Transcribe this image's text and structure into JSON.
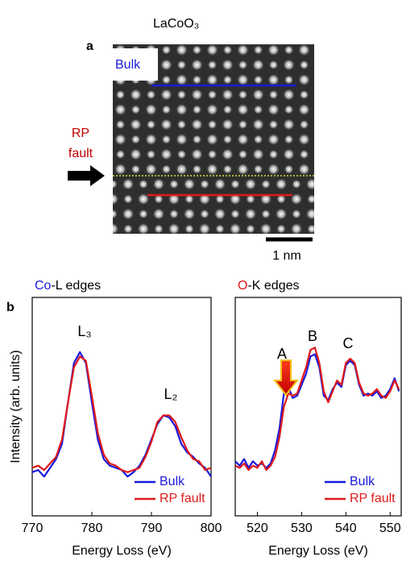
{
  "panel_a": {
    "label": "a",
    "title": "LaCoO₃",
    "bulk_label": "Bulk",
    "fault_label": [
      "RP",
      "fault"
    ],
    "scale_bar": "1 nm"
  },
  "panel_b": {
    "label": "b"
  },
  "chart_data": [
    {
      "type": "line",
      "title": [
        "Co",
        "-L edges"
      ],
      "title_color": "#1a1adc",
      "xlabel": "Energy Loss (eV)",
      "ylabel": "Intensity (arb. units)",
      "xlim": [
        770,
        800
      ],
      "xticks": [
        770,
        780,
        790,
        800
      ],
      "ylim": [
        0,
        1
      ],
      "legend": "lower right",
      "annotations": [
        "L₃",
        "L₂"
      ],
      "x": [
        770,
        771,
        772,
        773,
        774,
        775,
        776,
        777,
        778,
        779,
        780,
        781,
        782,
        783,
        784,
        785,
        786,
        787,
        788,
        789,
        790,
        791,
        792,
        793,
        794,
        795,
        796,
        797,
        798,
        799,
        800
      ],
      "series": [
        {
          "name": "Bulk",
          "color": "#1a1adc",
          "values": [
            0.2,
            0.21,
            0.18,
            0.22,
            0.26,
            0.33,
            0.52,
            0.7,
            0.75,
            0.7,
            0.52,
            0.35,
            0.26,
            0.23,
            0.22,
            0.21,
            0.18,
            0.2,
            0.23,
            0.28,
            0.35,
            0.42,
            0.46,
            0.45,
            0.41,
            0.33,
            0.29,
            0.27,
            0.24,
            0.22,
            0.18
          ]
        },
        {
          "name": "RP fault",
          "color": "#e01a1a",
          "values": [
            0.22,
            0.23,
            0.21,
            0.24,
            0.27,
            0.35,
            0.52,
            0.68,
            0.73,
            0.71,
            0.55,
            0.38,
            0.28,
            0.24,
            0.23,
            0.21,
            0.2,
            0.21,
            0.22,
            0.27,
            0.34,
            0.43,
            0.46,
            0.46,
            0.43,
            0.36,
            0.3,
            0.26,
            0.25,
            0.21,
            0.22
          ]
        }
      ]
    },
    {
      "type": "line",
      "title": [
        "O",
        "-K edges"
      ],
      "title_color": "#e01a1a",
      "xlabel": "Energy Loss (eV)",
      "xlim": [
        515,
        552.5
      ],
      "xticks": [
        520,
        530,
        540,
        550
      ],
      "ylim": [
        0,
        1
      ],
      "legend": "lower right",
      "annotations": [
        "A",
        "B",
        "C"
      ],
      "x": [
        515,
        516,
        517,
        518,
        519,
        520,
        521,
        522,
        523,
        524,
        525,
        526,
        527,
        528,
        529,
        530,
        531,
        532,
        533,
        534,
        535,
        536,
        537,
        538,
        539,
        540,
        541,
        542,
        543,
        544,
        545,
        546,
        547,
        548,
        549,
        550,
        551,
        552
      ],
      "series": [
        {
          "name": "Bulk",
          "color": "#1a1adc",
          "values": [
            0.25,
            0.23,
            0.26,
            0.22,
            0.25,
            0.23,
            0.24,
            0.22,
            0.24,
            0.3,
            0.4,
            0.56,
            0.59,
            0.54,
            0.55,
            0.6,
            0.65,
            0.73,
            0.74,
            0.68,
            0.55,
            0.53,
            0.58,
            0.61,
            0.59,
            0.69,
            0.71,
            0.69,
            0.6,
            0.55,
            0.56,
            0.55,
            0.57,
            0.54,
            0.55,
            0.58,
            0.63,
            0.57
          ]
        },
        {
          "name": "RP fault",
          "color": "#e01a1a",
          "values": [
            0.23,
            0.22,
            0.24,
            0.21,
            0.23,
            0.22,
            0.25,
            0.21,
            0.23,
            0.27,
            0.36,
            0.5,
            0.56,
            0.55,
            0.56,
            0.62,
            0.68,
            0.76,
            0.77,
            0.7,
            0.57,
            0.52,
            0.57,
            0.62,
            0.6,
            0.7,
            0.72,
            0.7,
            0.61,
            0.56,
            0.55,
            0.56,
            0.58,
            0.55,
            0.54,
            0.57,
            0.62,
            0.58
          ]
        }
      ]
    }
  ]
}
